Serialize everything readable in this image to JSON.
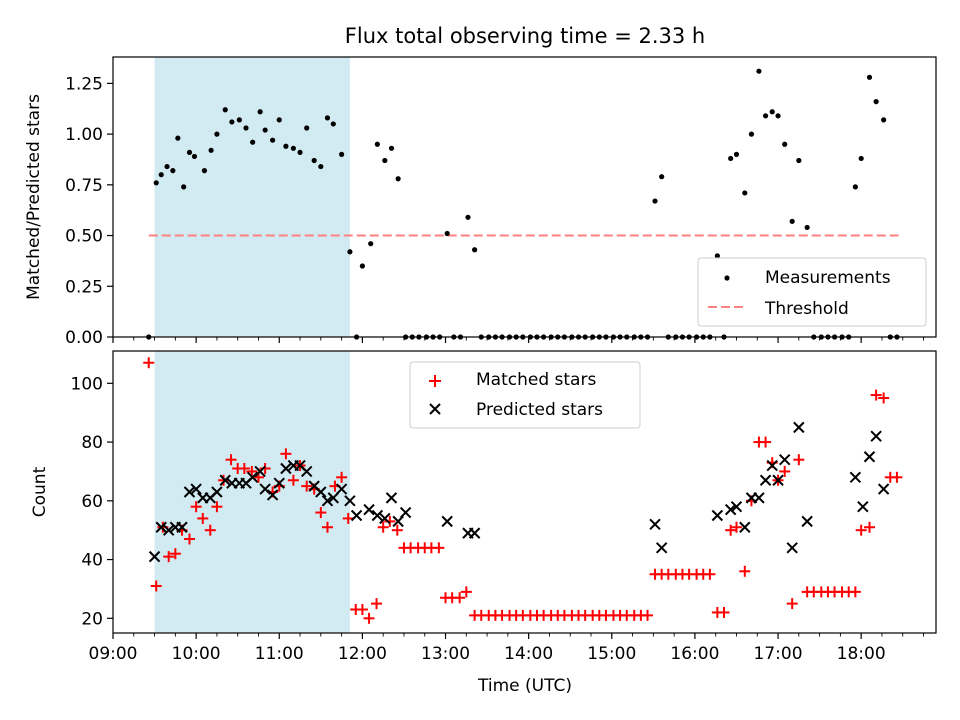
{
  "chart_data": [
    {
      "type": "scatter",
      "title": "Flux total observing time = 2.33 h",
      "xlabel": "",
      "ylabel": "Matched/Predicted stars",
      "xlim": [
        9.0,
        18.9
      ],
      "ylim": [
        0.0,
        1.38
      ],
      "yticks": [
        0.0,
        0.25,
        0.5,
        0.75,
        1.0,
        1.25
      ],
      "ytick_labels": [
        "0.00",
        "0.25",
        "0.50",
        "0.75",
        "1.00",
        "1.25"
      ],
      "shaded_region": {
        "x_start": 9.5,
        "x_end": 11.85,
        "color": "#add8e6"
      },
      "threshold": {
        "name": "Threshold",
        "value": 0.5,
        "x_range": [
          9.43,
          18.45
        ],
        "color": "#ff8080"
      },
      "legend": {
        "position": "lower-right",
        "entries": [
          "Measurements",
          "Threshold"
        ]
      },
      "series": [
        {
          "name": "Measurements",
          "color": "#000000",
          "x": [
            9.43,
            9.52,
            9.58,
            9.65,
            9.72,
            9.78,
            9.85,
            9.92,
            9.98,
            10.1,
            10.18,
            10.25,
            10.35,
            10.43,
            10.52,
            10.6,
            10.68,
            10.77,
            10.83,
            10.92,
            11.0,
            11.08,
            11.17,
            11.25,
            11.33,
            11.42,
            11.5,
            11.58,
            11.65,
            11.75,
            11.85,
            11.93,
            12.0,
            12.1,
            12.18,
            12.27,
            12.35,
            12.43,
            12.52,
            12.6,
            12.68,
            12.77,
            12.85,
            12.93,
            13.02,
            13.1,
            13.18,
            13.27,
            13.35,
            13.43,
            13.52,
            13.6,
            13.68,
            13.77,
            13.85,
            13.93,
            14.02,
            14.1,
            14.18,
            14.27,
            14.35,
            14.43,
            14.52,
            14.6,
            14.68,
            14.77,
            14.85,
            14.93,
            15.02,
            15.1,
            15.18,
            15.27,
            15.35,
            15.43,
            15.52,
            15.6,
            15.68,
            15.77,
            15.85,
            15.93,
            16.02,
            16.1,
            16.18,
            16.27,
            16.35,
            16.43,
            16.5,
            16.6,
            16.68,
            16.77,
            16.85,
            16.93,
            17.0,
            17.08,
            17.17,
            17.25,
            17.35,
            17.43,
            17.52,
            17.6,
            17.68,
            17.77,
            17.85,
            17.93,
            18.0,
            18.1,
            18.18,
            18.27,
            18.35,
            18.43
          ],
          "y": [
            0.0,
            0.76,
            0.8,
            0.84,
            0.82,
            0.98,
            0.74,
            0.91,
            0.89,
            0.82,
            0.92,
            1.0,
            1.12,
            1.06,
            1.07,
            1.03,
            0.96,
            1.11,
            1.02,
            0.97,
            1.07,
            0.94,
            0.93,
            0.91,
            1.03,
            0.87,
            0.84,
            1.08,
            1.05,
            0.9,
            0.42,
            0.0,
            0.35,
            0.46,
            0.95,
            0.87,
            0.93,
            0.78,
            0.0,
            0.0,
            0.0,
            0.0,
            0.0,
            0.0,
            0.51,
            0.0,
            0.0,
            0.59,
            0.43,
            0.0,
            0.0,
            0.0,
            0.0,
            0.0,
            0.0,
            0.0,
            0.0,
            0.0,
            0.0,
            0.0,
            0.0,
            0.0,
            0.0,
            0.0,
            0.0,
            0.0,
            0.0,
            0.0,
            0.0,
            0.0,
            0.0,
            0.0,
            0.0,
            0.0,
            0.67,
            0.79,
            0.0,
            0.0,
            0.0,
            0.0,
            0.0,
            0.0,
            0.0,
            0.4,
            0.0,
            0.88,
            0.9,
            0.71,
            1.0,
            1.31,
            1.09,
            1.11,
            1.09,
            0.95,
            0.57,
            0.87,
            0.54,
            0.0,
            0.0,
            0.0,
            0.0,
            0.0,
            0.0,
            0.74,
            0.88,
            1.28,
            1.16,
            1.07,
            0.0,
            0.0
          ]
        }
      ]
    },
    {
      "type": "scatter",
      "title": "",
      "xlabel": "Time (UTC)",
      "ylabel": "Count",
      "xlim": [
        9.0,
        18.9
      ],
      "ylim": [
        15,
        111
      ],
      "yticks": [
        20,
        40,
        60,
        80,
        100
      ],
      "ytick_labels": [
        "20",
        "40",
        "60",
        "80",
        "100"
      ],
      "xticks": [
        9,
        10,
        11,
        12,
        13,
        14,
        15,
        16,
        17,
        18
      ],
      "xtick_labels": [
        "09:00",
        "10:00",
        "11:00",
        "12:00",
        "13:00",
        "14:00",
        "15:00",
        "16:00",
        "17:00",
        "18:00"
      ],
      "shaded_region": {
        "x_start": 9.5,
        "x_end": 11.85,
        "color": "#add8e6"
      },
      "legend": {
        "position": "top-center",
        "entries": [
          "Matched stars",
          "Predicted stars"
        ]
      },
      "series": [
        {
          "name": "Matched stars",
          "marker": "+",
          "color": "#ff0000",
          "x": [
            9.43,
            9.52,
            9.6,
            9.67,
            9.75,
            9.83,
            9.92,
            10.0,
            10.08,
            10.17,
            10.25,
            10.33,
            10.42,
            10.5,
            10.58,
            10.67,
            10.75,
            10.83,
            10.92,
            11.0,
            11.08,
            11.17,
            11.25,
            11.33,
            11.42,
            11.5,
            11.58,
            11.67,
            11.75,
            11.83,
            11.92,
            12.0,
            12.08,
            12.17,
            12.25,
            12.33,
            12.42,
            12.5,
            12.58,
            12.67,
            12.75,
            12.83,
            12.92,
            13.0,
            13.08,
            13.17,
            13.25,
            13.35,
            13.43,
            13.52,
            13.6,
            13.68,
            13.77,
            13.85,
            13.93,
            14.02,
            14.1,
            14.18,
            14.27,
            14.35,
            14.43,
            14.52,
            14.6,
            14.68,
            14.77,
            14.85,
            14.93,
            15.02,
            15.1,
            15.18,
            15.27,
            15.35,
            15.43,
            15.52,
            15.6,
            15.68,
            15.77,
            15.85,
            15.93,
            16.02,
            16.1,
            16.18,
            16.27,
            16.35,
            16.43,
            16.5,
            16.6,
            16.68,
            16.77,
            16.85,
            16.93,
            17.0,
            17.08,
            17.17,
            17.25,
            17.35,
            17.43,
            17.52,
            17.6,
            17.68,
            17.77,
            17.85,
            17.93,
            18.0,
            18.1,
            18.18,
            18.27,
            18.35,
            18.43
          ],
          "y": [
            107,
            31,
            51,
            41,
            42,
            50,
            47,
            58,
            54,
            50,
            58,
            67,
            74,
            71,
            71,
            70,
            68,
            71,
            63,
            65,
            76,
            67,
            72,
            65,
            64,
            56,
            51,
            65,
            68,
            54,
            23,
            23,
            20,
            25,
            51,
            53,
            50,
            44,
            44,
            44,
            44,
            44,
            44,
            27,
            27,
            27,
            29,
            21,
            21,
            21,
            21,
            21,
            21,
            21,
            21,
            21,
            21,
            21,
            21,
            21,
            21,
            21,
            21,
            21,
            21,
            21,
            21,
            21,
            21,
            21,
            21,
            21,
            21,
            35,
            35,
            35,
            35,
            35,
            35,
            35,
            35,
            35,
            22,
            22,
            50,
            51,
            36,
            60,
            80,
            80,
            73,
            67,
            70,
            25,
            74,
            29,
            29,
            29,
            29,
            29,
            29,
            29,
            29,
            50,
            51,
            96,
            95,
            68,
            68
          ]
        },
        {
          "name": "Predicted stars",
          "marker": "x",
          "color": "#000000",
          "x": [
            9.5,
            9.58,
            9.67,
            9.75,
            9.83,
            9.92,
            10.0,
            10.08,
            10.17,
            10.25,
            10.35,
            10.43,
            10.52,
            10.6,
            10.68,
            10.77,
            10.83,
            10.92,
            11.0,
            11.08,
            11.17,
            11.25,
            11.33,
            11.42,
            11.5,
            11.58,
            11.65,
            11.75,
            11.85,
            11.93,
            12.08,
            12.18,
            12.27,
            12.35,
            12.43,
            12.52,
            13.02,
            13.27,
            13.35,
            15.52,
            15.6,
            16.27,
            16.43,
            16.5,
            16.6,
            16.68,
            16.77,
            16.85,
            16.93,
            17.0,
            17.08,
            17.17,
            17.25,
            17.35,
            17.93,
            18.02,
            18.1,
            18.18,
            18.27
          ],
          "y": [
            41,
            51,
            50,
            51,
            51,
            63,
            64,
            61,
            61,
            63,
            67,
            66,
            66,
            66,
            68,
            70,
            64,
            62,
            66,
            71,
            72,
            72,
            70,
            65,
            63,
            60,
            61,
            64,
            60,
            55,
            57,
            55,
            54,
            61,
            53,
            56,
            53,
            49,
            49,
            52,
            44,
            55,
            57,
            58,
            51,
            61,
            61,
            67,
            72,
            67,
            74,
            44,
            85,
            53,
            68,
            58,
            75,
            82,
            64
          ]
        }
      ]
    }
  ]
}
